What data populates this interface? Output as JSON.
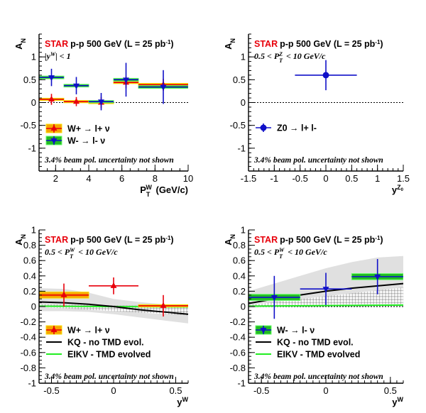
{
  "chart_data": [
    {
      "type": "scatter",
      "ylabel": "A_N",
      "xlabel": "P_T^W (GeV/c)",
      "xlim": [
        1,
        10
      ],
      "ylim": [
        -1.5,
        1.5
      ],
      "xticks": [
        "2",
        "4",
        "6",
        "8",
        "10"
      ],
      "yticks": [
        "-1",
        "-0.5",
        "0",
        "0.5",
        "1"
      ],
      "title_star": "STAR",
      "title_rest": "p-p 500 GeV (L = 25 pb",
      "title_sup": "-1",
      "title_close": ")",
      "subtitle": "|y^W| < 1",
      "note": "3.4% beam pol. uncertainty not shown",
      "legend": [
        "W+ → l+ ν",
        "W- → l- ν"
      ],
      "series": [
        {
          "name": "W+ → l+ ν",
          "color": "#e8000b",
          "marker": "triangle-up",
          "band": "#f7a400",
          "band_edge": "#f7e000",
          "points": [
            {
              "x": 1.75,
              "xlo": 1,
              "xhi": 2.5,
              "y": 0.07,
              "err": 0.12,
              "sys": 0.025
            },
            {
              "x": 3.25,
              "xlo": 2.5,
              "xhi": 4,
              "y": 0.02,
              "err": 0.1,
              "sys": 0.025
            },
            {
              "x": 4.75,
              "xlo": 4,
              "xhi": 5.5,
              "y": 0.0,
              "err": 0.12,
              "sys": 0.025
            },
            {
              "x": 6.25,
              "xlo": 5.5,
              "xhi": 7,
              "y": 0.44,
              "err": 0.13,
              "sys": 0.025
            },
            {
              "x": 8.5,
              "xlo": 7,
              "xhi": 10,
              "y": 0.39,
              "err": 0.13,
              "sys": 0.03
            }
          ]
        },
        {
          "name": "W- → l- ν",
          "color": "#1010c8",
          "marker": "triangle-down",
          "band": "#22bb22",
          "band_edge": "#66ff66",
          "points": [
            {
              "x": 1.75,
              "xlo": 1,
              "xhi": 2.5,
              "y": 0.55,
              "err": 0.19,
              "sys": 0.03
            },
            {
              "x": 3.25,
              "xlo": 2.5,
              "xhi": 4,
              "y": 0.37,
              "err": 0.19,
              "sys": 0.03
            },
            {
              "x": 4.75,
              "xlo": 4,
              "xhi": 5.5,
              "y": 0.02,
              "err": 0.19,
              "sys": 0.025
            },
            {
              "x": 6.25,
              "xlo": 5.5,
              "xhi": 7,
              "y": 0.5,
              "err": 0.37,
              "sys": 0.03
            },
            {
              "x": 8.5,
              "xlo": 7,
              "xhi": 10,
              "y": 0.34,
              "err": 0.37,
              "sys": 0.03
            }
          ]
        }
      ]
    },
    {
      "type": "scatter",
      "ylabel": "A_N",
      "xlabel": "y^{Z0}",
      "xlim": [
        -1.5,
        1.5
      ],
      "ylim": [
        -1.5,
        1.5
      ],
      "xticks": [
        "-1.5",
        "-1",
        "-0.5",
        "0",
        "0.5",
        "1",
        "1.5"
      ],
      "yticks": [
        "-1",
        "-0.5",
        "0",
        "0.5",
        "1"
      ],
      "title_star": "STAR",
      "title_rest": "p-p 500 GeV (L = 25 pb",
      "title_sup": "-1",
      "title_close": ")",
      "subtitle": "0.5 < P_T^Z < 10 GeV/c",
      "note": "3.4% beam pol. uncertainty not shown",
      "legend": [
        "Z0 → l+ l-"
      ],
      "series": [
        {
          "name": "Z0 → l+ l-",
          "color": "#1010c8",
          "marker": "circle",
          "points": [
            {
              "x": 0.0,
              "xlo": -0.6,
              "xhi": 0.6,
              "y": 0.6,
              "err": 0.33
            }
          ]
        }
      ]
    },
    {
      "type": "scatter",
      "ylabel": "A_N",
      "xlabel": "y^W",
      "xlim": [
        -0.6,
        0.6
      ],
      "ylim": [
        -1,
        1
      ],
      "xticks": [
        "-0.5",
        "0",
        "0.5"
      ],
      "yticks": [
        "-1",
        "-0.8",
        "-0.6",
        "-0.4",
        "-0.2",
        "0",
        "0.2",
        "0.4",
        "0.6",
        "0.8",
        "1"
      ],
      "title_star": "STAR",
      "title_rest": "p-p 500 GeV (L = 25 pb",
      "title_sup": "-1",
      "title_close": ")",
      "subtitle": "0.5 < P_T^W < 10 GeV/c",
      "note": "3.4% beam pol. uncertainty not shown",
      "legend": [
        "W+ → l+ ν",
        "KQ - no TMD evol.",
        "EIKV - TMD evolved"
      ],
      "theory": {
        "kq": {
          "x": [
            -0.6,
            -0.4,
            -0.2,
            0.0,
            0.2,
            0.4,
            0.6
          ],
          "y": [
            0.06,
            0.05,
            0.03,
            0.0,
            -0.04,
            -0.07,
            -0.1
          ]
        },
        "kq_band": {
          "x": [
            -0.6,
            -0.4,
            -0.2,
            0.0,
            0.2,
            0.4,
            0.6
          ],
          "lo": [
            -0.06,
            -0.06,
            -0.07,
            -0.1,
            -0.14,
            -0.18,
            -0.22
          ],
          "hi": [
            0.24,
            0.23,
            0.18,
            0.1,
            0.06,
            0.03,
            0.02
          ]
        },
        "eikv": {
          "x": [
            -0.6,
            0.6
          ],
          "y": [
            0.005,
            -0.005
          ]
        },
        "eikv_band": {
          "x": [
            -0.6,
            0.6
          ],
          "lo": [
            -0.005,
            -0.115
          ],
          "hi": [
            0.025,
            0.01
          ]
        }
      },
      "series": [
        {
          "name": "W+ → l+ ν",
          "color": "#e8000b",
          "marker": "triangle-up",
          "band": "#f7a400",
          "band_edge": "#f7e000",
          "points": [
            {
              "x": -0.4,
              "xlo": -0.6,
              "xhi": -0.2,
              "y": 0.15,
              "err": 0.15,
              "sys": 0.04
            },
            {
              "x": 0.0,
              "xlo": -0.2,
              "xhi": 0.2,
              "y": 0.27,
              "err": 0.11
            },
            {
              "x": 0.4,
              "xlo": 0.2,
              "xhi": 0.6,
              "y": 0.01,
              "err": 0.14,
              "sys": 0.015
            }
          ]
        }
      ]
    },
    {
      "type": "scatter",
      "ylabel": "A_N",
      "xlabel": "y^W",
      "xlim": [
        -0.6,
        0.6
      ],
      "ylim": [
        -1,
        1
      ],
      "xticks": [
        "-0.5",
        "0",
        "0.5"
      ],
      "yticks": [
        "-1",
        "-0.8",
        "-0.6",
        "-0.4",
        "-0.2",
        "0",
        "0.2",
        "0.4",
        "0.6",
        "0.8",
        "1"
      ],
      "title_star": "STAR",
      "title_rest": "p-p 500 GeV (L = 25 pb",
      "title_sup": "-1",
      "title_close": ")",
      "subtitle": "0.5 < P_T^W < 10 GeV/c",
      "note": "3.4% beam pol. uncertainty not shown",
      "legend": [
        "W- → l- ν",
        "KQ - no TMD evol.",
        "EIKV - TMD evolved"
      ],
      "theory": {
        "kq": {
          "x": [
            -0.6,
            -0.4,
            -0.2,
            0.0,
            0.2,
            0.4,
            0.6
          ],
          "y": [
            0.04,
            0.1,
            0.15,
            0.2,
            0.24,
            0.27,
            0.3
          ]
        },
        "kq_band": {
          "x": [
            -0.6,
            -0.4,
            -0.2,
            0.0,
            0.2,
            0.4,
            0.6
          ],
          "lo": [
            -0.02,
            0.0,
            0.03,
            0.06,
            0.08,
            0.1,
            0.1
          ],
          "hi": [
            0.2,
            0.3,
            0.4,
            0.5,
            0.58,
            0.64,
            0.66
          ]
        },
        "eikv": {
          "x": [
            -0.6,
            0.6
          ],
          "y": [
            0.005,
            0.02
          ]
        },
        "eikv_band": {
          "x": [
            -0.6,
            0.6
          ],
          "lo": [
            -0.01,
            0.005
          ],
          "hi": [
            0.02,
            0.25
          ]
        }
      },
      "series": [
        {
          "name": "W- → l- ν",
          "color": "#1010c8",
          "marker": "triangle-down",
          "band": "#22bb22",
          "band_edge": "#66ff66",
          "points": [
            {
              "x": -0.4,
              "xlo": -0.6,
              "xhi": -0.2,
              "y": 0.12,
              "err": 0.28,
              "sys": 0.04
            },
            {
              "x": 0.0,
              "xlo": -0.2,
              "xhi": 0.2,
              "y": 0.23,
              "err": 0.21
            },
            {
              "x": 0.4,
              "xlo": 0.2,
              "xhi": 0.6,
              "y": 0.39,
              "err": 0.23,
              "sys": 0.04
            }
          ]
        }
      ]
    }
  ]
}
